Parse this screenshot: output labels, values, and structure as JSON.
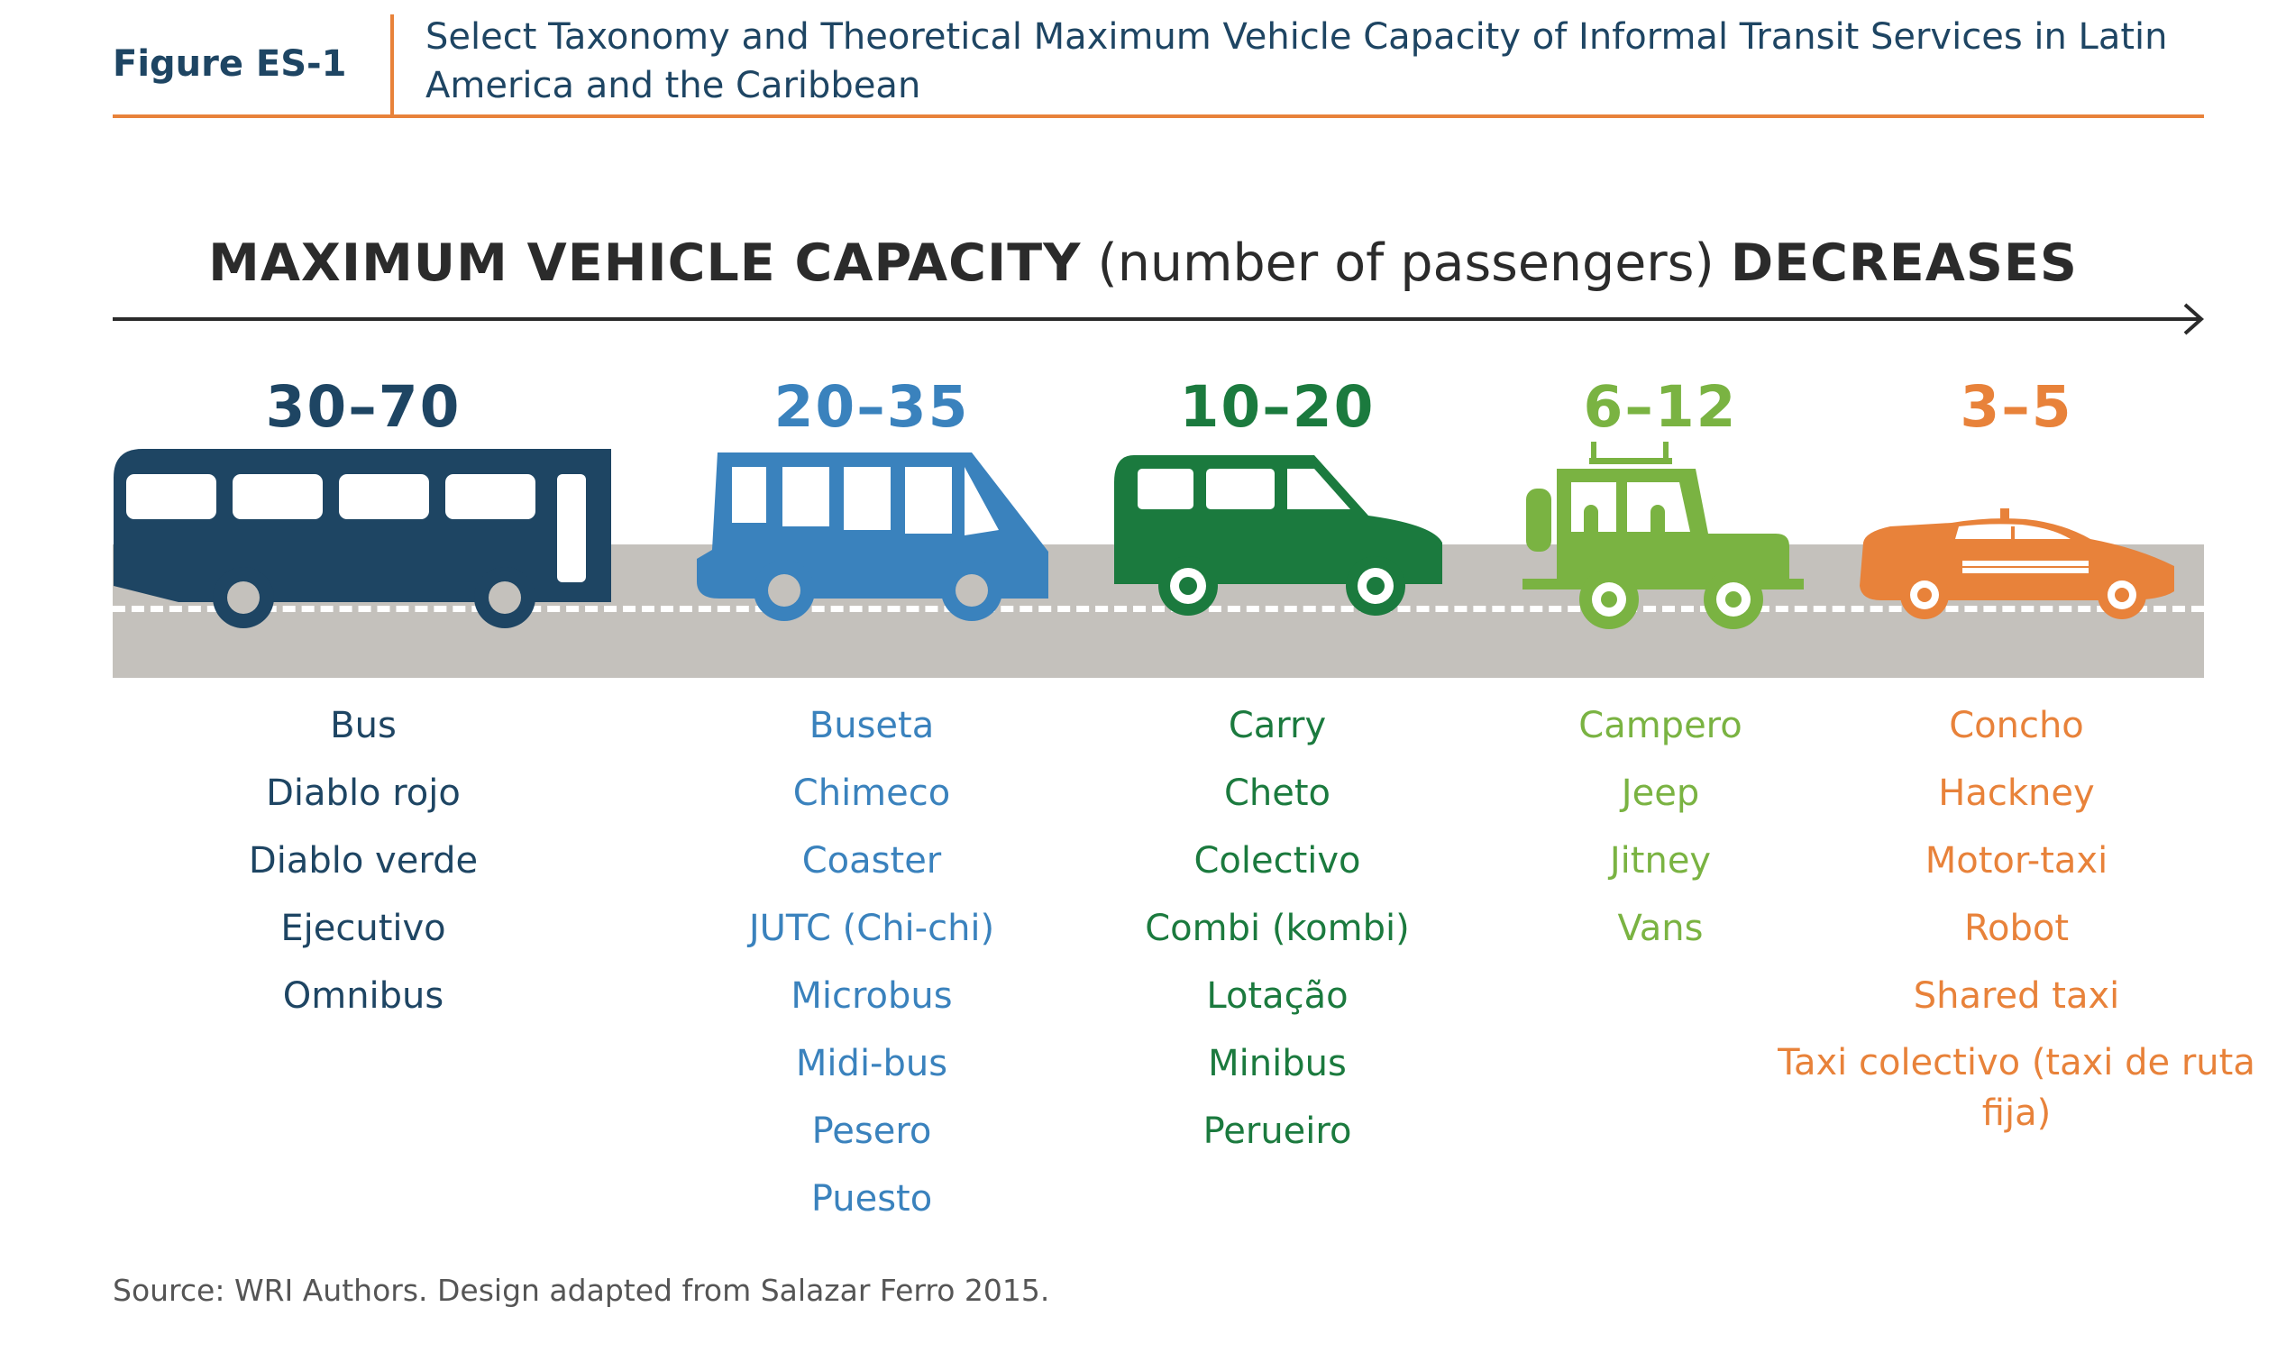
{
  "header": {
    "figure_label": "Figure ES-1",
    "title": "Select Taxonomy and Theoretical Maximum Vehicle Capacity of Informal Transit Services in Latin America and the Caribbean"
  },
  "heading": {
    "part1": "MAXIMUM VEHICLE CAPACITY",
    "part2": "(number of passengers)",
    "part3": "DECREASES"
  },
  "categories": [
    {
      "range": "30–70",
      "vehicle_icon": "bus-icon",
      "color": "#1e4563",
      "names": [
        "Bus",
        "Diablo rojo",
        "Diablo verde",
        "Ejecutivo",
        "Omnibus"
      ]
    },
    {
      "range": "20–35",
      "vehicle_icon": "minibus-icon",
      "color": "#3a82bd",
      "names": [
        "Buseta",
        "Chimeco",
        "Coaster",
        "JUTC (Chi-chi)",
        "Microbus",
        "Midi-bus",
        "Pesero",
        "Puesto"
      ]
    },
    {
      "range": "10–20",
      "vehicle_icon": "van-icon",
      "color": "#1b7a3e",
      "names": [
        "Carry",
        "Cheto",
        "Colectivo",
        "Combi (kombi)",
        "Lotação",
        "Minibus",
        "Perueiro"
      ]
    },
    {
      "range": "6–12",
      "vehicle_icon": "jeep-icon",
      "color": "#7ab342",
      "names": [
        "Campero",
        "Jeep",
        "Jitney",
        "Vans"
      ]
    },
    {
      "range": "3–5",
      "vehicle_icon": "taxi-icon",
      "color": "#e8823a",
      "names": [
        "Concho",
        "Hackney",
        "Motor-taxi",
        "Robot",
        "Shared taxi",
        "Taxi colectivo (taxi de ruta fija)"
      ]
    }
  ],
  "road_color": "#c4c1bc",
  "accent_color": "#e8823a",
  "source": "Source: WRI Authors. Design adapted from Salazar Ferro 2015."
}
